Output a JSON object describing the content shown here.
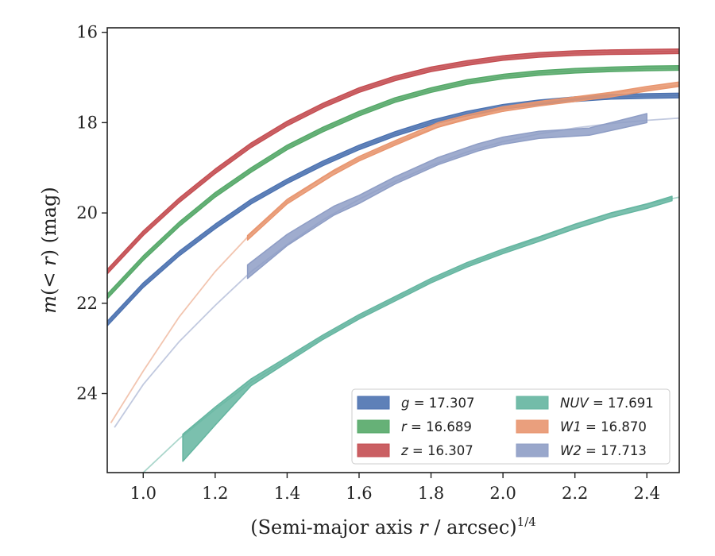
{
  "chart_data": {
    "type": "line",
    "xlabel": {
      "prefix": "(Semi-major axis ",
      "var": "r",
      "suffix": " / arcsec)",
      "sup": "1/4"
    },
    "ylabel": {
      "m": "m",
      "open": "(< ",
      "r": "r",
      "close": ") (mag)"
    },
    "xlim": [
      0.9,
      2.49
    ],
    "ylim": [
      25.75,
      15.9
    ],
    "y_inverted": true,
    "xticks": [
      1.0,
      1.2,
      1.4,
      1.6,
      1.8,
      2.0,
      2.2,
      2.4
    ],
    "xtick_labels": [
      "1.0",
      "1.2",
      "1.4",
      "1.6",
      "1.8",
      "2.0",
      "2.2",
      "2.4"
    ],
    "yticks": [
      16,
      18,
      20,
      22,
      24
    ],
    "ytick_labels": [
      "16",
      "18",
      "20",
      "22",
      "24"
    ],
    "grid": false,
    "legend_position": "lower right",
    "series": [
      {
        "name": "g",
        "label_var": "g",
        "label_rest": " = 17.307",
        "color": "#4c72b0",
        "model": [
          [
            0.9,
            22.45
          ],
          [
            1.0,
            21.6
          ],
          [
            1.1,
            20.9
          ],
          [
            1.2,
            20.3
          ],
          [
            1.3,
            19.75
          ],
          [
            1.4,
            19.3
          ],
          [
            1.5,
            18.9
          ],
          [
            1.6,
            18.55
          ],
          [
            1.7,
            18.25
          ],
          [
            1.8,
            18.0
          ],
          [
            1.9,
            17.8
          ],
          [
            2.0,
            17.65
          ],
          [
            2.1,
            17.55
          ],
          [
            2.2,
            17.48
          ],
          [
            2.3,
            17.43
          ],
          [
            2.4,
            17.41
          ],
          [
            2.49,
            17.4
          ]
        ],
        "data": [
          [
            0.9,
            22.45
          ],
          [
            1.0,
            21.6
          ],
          [
            1.1,
            20.9
          ],
          [
            1.2,
            20.3
          ],
          [
            1.3,
            19.75
          ],
          [
            1.4,
            19.3
          ],
          [
            1.5,
            18.9
          ],
          [
            1.6,
            18.55
          ],
          [
            1.7,
            18.25
          ],
          [
            1.8,
            18.0
          ],
          [
            1.9,
            17.8
          ],
          [
            2.0,
            17.65
          ],
          [
            2.1,
            17.55
          ],
          [
            2.2,
            17.48
          ],
          [
            2.3,
            17.43
          ],
          [
            2.4,
            17.41
          ],
          [
            2.49,
            17.4
          ]
        ],
        "band_width": 0.1
      },
      {
        "name": "r",
        "label_var": "r",
        "label_rest": " = 16.689",
        "color": "#55a868",
        "model": [
          [
            0.9,
            21.85
          ],
          [
            1.0,
            21.0
          ],
          [
            1.1,
            20.25
          ],
          [
            1.2,
            19.6
          ],
          [
            1.3,
            19.05
          ],
          [
            1.4,
            18.55
          ],
          [
            1.5,
            18.15
          ],
          [
            1.6,
            17.8
          ],
          [
            1.7,
            17.5
          ],
          [
            1.8,
            17.28
          ],
          [
            1.9,
            17.1
          ],
          [
            2.0,
            16.98
          ],
          [
            2.1,
            16.9
          ],
          [
            2.2,
            16.85
          ],
          [
            2.3,
            16.82
          ],
          [
            2.4,
            16.8
          ],
          [
            2.49,
            16.79
          ]
        ],
        "data": [
          [
            0.9,
            21.85
          ],
          [
            1.0,
            21.0
          ],
          [
            1.1,
            20.25
          ],
          [
            1.2,
            19.6
          ],
          [
            1.3,
            19.05
          ],
          [
            1.4,
            18.55
          ],
          [
            1.5,
            18.15
          ],
          [
            1.6,
            17.8
          ],
          [
            1.7,
            17.5
          ],
          [
            1.8,
            17.28
          ],
          [
            1.9,
            17.1
          ],
          [
            2.0,
            16.98
          ],
          [
            2.1,
            16.9
          ],
          [
            2.2,
            16.85
          ],
          [
            2.3,
            16.82
          ],
          [
            2.4,
            16.8
          ],
          [
            2.49,
            16.79
          ]
        ],
        "band_width": 0.1
      },
      {
        "name": "z",
        "label_var": "z",
        "label_rest": " = 16.307",
        "color": "#c44e52",
        "model": [
          [
            0.9,
            21.3
          ],
          [
            1.0,
            20.45
          ],
          [
            1.1,
            19.72
          ],
          [
            1.2,
            19.08
          ],
          [
            1.3,
            18.5
          ],
          [
            1.4,
            18.02
          ],
          [
            1.5,
            17.62
          ],
          [
            1.6,
            17.28
          ],
          [
            1.7,
            17.02
          ],
          [
            1.8,
            16.82
          ],
          [
            1.9,
            16.68
          ],
          [
            2.0,
            16.57
          ],
          [
            2.1,
            16.5
          ],
          [
            2.2,
            16.46
          ],
          [
            2.3,
            16.44
          ],
          [
            2.4,
            16.43
          ],
          [
            2.49,
            16.42
          ]
        ],
        "data": [
          [
            0.9,
            21.3
          ],
          [
            1.0,
            20.45
          ],
          [
            1.1,
            19.72
          ],
          [
            1.2,
            19.08
          ],
          [
            1.3,
            18.5
          ],
          [
            1.4,
            18.02
          ],
          [
            1.5,
            17.62
          ],
          [
            1.6,
            17.28
          ],
          [
            1.7,
            17.02
          ],
          [
            1.8,
            16.82
          ],
          [
            1.9,
            16.68
          ],
          [
            2.0,
            16.57
          ],
          [
            2.1,
            16.5
          ],
          [
            2.2,
            16.46
          ],
          [
            2.3,
            16.44
          ],
          [
            2.4,
            16.43
          ],
          [
            2.49,
            16.42
          ]
        ],
        "band_width": 0.1
      },
      {
        "name": "NUV",
        "label_var": "NUV",
        "label_rest": " = 17.691",
        "color": "#64b5a0",
        "model": [
          [
            1.0,
            25.75
          ],
          [
            1.1,
            25.0
          ],
          [
            1.2,
            24.35
          ],
          [
            1.3,
            23.75
          ],
          [
            1.4,
            23.25
          ],
          [
            1.5,
            22.75
          ],
          [
            1.6,
            22.3
          ],
          [
            1.7,
            21.9
          ],
          [
            1.8,
            21.5
          ],
          [
            1.9,
            21.15
          ],
          [
            2.0,
            20.85
          ],
          [
            2.1,
            20.55
          ],
          [
            2.2,
            20.25
          ],
          [
            2.3,
            20.0
          ],
          [
            2.4,
            19.8
          ],
          [
            2.49,
            19.65
          ]
        ],
        "data": [
          [
            1.11,
            25.2
          ],
          [
            1.2,
            24.5
          ],
          [
            1.3,
            23.75
          ],
          [
            1.4,
            23.25
          ],
          [
            1.5,
            22.75
          ],
          [
            1.6,
            22.3
          ],
          [
            1.7,
            21.9
          ],
          [
            1.8,
            21.5
          ],
          [
            1.9,
            21.15
          ],
          [
            2.0,
            20.85
          ],
          [
            2.1,
            20.58
          ],
          [
            2.2,
            20.3
          ],
          [
            2.3,
            20.05
          ],
          [
            2.4,
            19.85
          ],
          [
            2.47,
            19.68
          ]
        ],
        "band_width": [
          0.6,
          0.4,
          0.15,
          0.12,
          0.1,
          0.1,
          0.1,
          0.1,
          0.1,
          0.1,
          0.1,
          0.1,
          0.1,
          0.1,
          0.1
        ]
      },
      {
        "name": "W1",
        "label_var": "W1",
        "label_rest": " = 16.870",
        "color": "#e8956f",
        "model": [
          [
            0.91,
            24.65
          ],
          [
            1.0,
            23.5
          ],
          [
            1.1,
            22.3
          ],
          [
            1.2,
            21.3
          ],
          [
            1.3,
            20.45
          ],
          [
            1.4,
            19.75
          ],
          [
            1.5,
            19.2
          ],
          [
            1.6,
            18.8
          ],
          [
            1.7,
            18.45
          ],
          [
            1.8,
            18.15
          ],
          [
            1.9,
            17.9
          ],
          [
            2.0,
            17.7
          ],
          [
            2.1,
            17.55
          ],
          [
            2.2,
            17.45
          ],
          [
            2.3,
            17.35
          ],
          [
            2.4,
            17.25
          ],
          [
            2.49,
            17.17
          ]
        ],
        "data": [
          [
            1.29,
            20.55
          ],
          [
            1.4,
            19.75
          ],
          [
            1.53,
            19.1
          ],
          [
            1.6,
            18.8
          ],
          [
            1.7,
            18.45
          ],
          [
            1.82,
            18.05
          ],
          [
            1.9,
            17.88
          ],
          [
            2.0,
            17.7
          ],
          [
            2.1,
            17.58
          ],
          [
            2.2,
            17.48
          ],
          [
            2.3,
            17.38
          ],
          [
            2.4,
            17.25
          ],
          [
            2.49,
            17.15
          ]
        ],
        "band_width": 0.1
      },
      {
        "name": "W2",
        "label_var": "W2",
        "label_rest": " = 17.713",
        "color": "#8e9dc5",
        "model": [
          [
            0.92,
            24.75
          ],
          [
            1.0,
            23.8
          ],
          [
            1.1,
            22.85
          ],
          [
            1.2,
            22.05
          ],
          [
            1.3,
            21.3
          ],
          [
            1.4,
            20.7
          ],
          [
            1.5,
            20.15
          ],
          [
            1.6,
            19.7
          ],
          [
            1.7,
            19.3
          ],
          [
            1.8,
            18.95
          ],
          [
            1.9,
            18.65
          ],
          [
            2.0,
            18.42
          ],
          [
            2.1,
            18.25
          ],
          [
            2.2,
            18.12
          ],
          [
            2.3,
            18.02
          ],
          [
            2.4,
            17.95
          ],
          [
            2.49,
            17.9
          ]
        ],
        "data": [
          [
            1.29,
            21.3
          ],
          [
            1.4,
            20.6
          ],
          [
            1.53,
            19.95
          ],
          [
            1.6,
            19.7
          ],
          [
            1.7,
            19.28
          ],
          [
            1.82,
            18.85
          ],
          [
            1.93,
            18.55
          ],
          [
            2.0,
            18.4
          ],
          [
            2.1,
            18.27
          ],
          [
            2.24,
            18.2
          ],
          [
            2.32,
            18.05
          ],
          [
            2.4,
            17.9
          ]
        ],
        "band_width": [
          0.3,
          0.25,
          0.2,
          0.18,
          0.16,
          0.16,
          0.16,
          0.16,
          0.16,
          0.16,
          0.18,
          0.2
        ]
      }
    ]
  }
}
